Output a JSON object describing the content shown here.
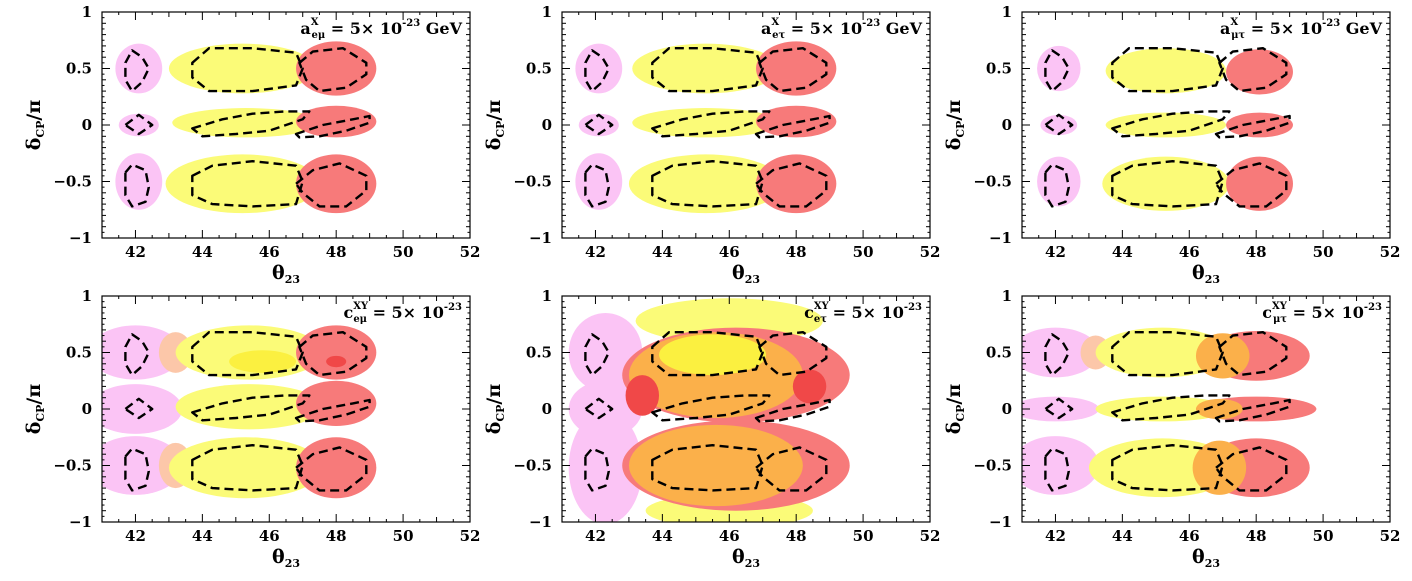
{
  "figure": {
    "panels": 6,
    "layout": "2 rows x 3 columns",
    "x_axis": {
      "symbol": "θ",
      "subscript": "23",
      "range": [
        41,
        52
      ],
      "major_ticks": [
        42,
        44,
        46,
        48,
        50,
        52
      ],
      "tick_labels": [
        "42",
        "44",
        "46",
        "48",
        "50",
        "52"
      ]
    },
    "y_axis": {
      "symbol": "δ",
      "subscript": "CP",
      "suffix": "/π",
      "range": [
        -1,
        1
      ],
      "major_ticks": [
        -1,
        -0.5,
        0,
        0.5,
        1
      ],
      "tick_labels": [
        "−1",
        "−0.5",
        "0",
        "0.5",
        "1"
      ]
    },
    "colors": {
      "pink": "#fbc4f5",
      "yellow": "#fbfb78",
      "red": "#f77a7a",
      "orange": "#fbb04a",
      "dark_red": "#f04848",
      "bright_yellow": "#fbf040",
      "peach": "#fcc7a9",
      "contour": "#000000"
    }
  },
  "chart_data": [
    {
      "type": "area",
      "annotation": {
        "base": "a",
        "sup": "X",
        "sub": "eμ",
        "rest": " = 5× 10",
        "exp": "-23",
        "unit": " GeV"
      },
      "xlim": [
        41,
        52
      ],
      "ylim": [
        -1,
        1
      ],
      "grid": false,
      "legend": "none",
      "regions": [
        {
          "color": "pink",
          "center": [
            42.1,
            0.5
          ],
          "rx": 0.7,
          "ry": 0.22
        },
        {
          "color": "pink",
          "center": [
            42.1,
            0.0
          ],
          "rx": 0.6,
          "ry": 0.1
        },
        {
          "color": "pink",
          "center": [
            42.1,
            -0.5
          ],
          "rx": 0.7,
          "ry": 0.25
        },
        {
          "color": "yellow",
          "center": [
            45.2,
            0.5
          ],
          "rx": 2.2,
          "ry": 0.22
        },
        {
          "color": "yellow",
          "center": [
            45.3,
            0.02
          ],
          "rx": 2.2,
          "ry": 0.13
        },
        {
          "color": "yellow",
          "center": [
            45.2,
            -0.52
          ],
          "rx": 2.3,
          "ry": 0.26
        },
        {
          "color": "red",
          "center": [
            48.0,
            0.5
          ],
          "rx": 1.2,
          "ry": 0.24
        },
        {
          "color": "red",
          "center": [
            48.0,
            0.03
          ],
          "rx": 1.2,
          "ry": 0.14
        },
        {
          "color": "red",
          "center": [
            48.0,
            -0.52
          ],
          "rx": 1.2,
          "ry": 0.26
        }
      ]
    },
    {
      "type": "area",
      "annotation": {
        "base": "a",
        "sup": "X",
        "sub": "eτ",
        "rest": " = 5× 10",
        "exp": "-23",
        "unit": " GeV"
      },
      "xlim": [
        41,
        52
      ],
      "ylim": [
        -1,
        1
      ],
      "grid": false,
      "legend": "none",
      "regions": [
        {
          "color": "pink",
          "center": [
            42.1,
            0.5
          ],
          "rx": 0.7,
          "ry": 0.22
        },
        {
          "color": "pink",
          "center": [
            42.1,
            0.0
          ],
          "rx": 0.6,
          "ry": 0.1
        },
        {
          "color": "pink",
          "center": [
            42.1,
            -0.5
          ],
          "rx": 0.7,
          "ry": 0.25
        },
        {
          "color": "yellow",
          "center": [
            45.3,
            0.5
          ],
          "rx": 2.2,
          "ry": 0.22
        },
        {
          "color": "yellow",
          "center": [
            45.3,
            0.02
          ],
          "rx": 2.2,
          "ry": 0.13
        },
        {
          "color": "yellow",
          "center": [
            45.3,
            -0.52
          ],
          "rx": 2.3,
          "ry": 0.26
        },
        {
          "color": "red",
          "center": [
            48.0,
            0.5
          ],
          "rx": 1.2,
          "ry": 0.24
        },
        {
          "color": "red",
          "center": [
            48.0,
            0.03
          ],
          "rx": 1.2,
          "ry": 0.14
        },
        {
          "color": "red",
          "center": [
            48.0,
            -0.52
          ],
          "rx": 1.2,
          "ry": 0.26
        }
      ]
    },
    {
      "type": "area",
      "annotation": {
        "base": "a",
        "sup": "X",
        "sub": "μτ",
        "rest": " = 5× 10",
        "exp": "-23",
        "unit": " GeV"
      },
      "xlim": [
        41,
        52
      ],
      "ylim": [
        -1,
        1
      ],
      "grid": false,
      "legend": "none",
      "regions": [
        {
          "color": "pink",
          "center": [
            42.1,
            0.5
          ],
          "rx": 0.65,
          "ry": 0.2
        },
        {
          "color": "pink",
          "center": [
            42.1,
            0.0
          ],
          "rx": 0.55,
          "ry": 0.09
        },
        {
          "color": "pink",
          "center": [
            42.1,
            -0.5
          ],
          "rx": 0.65,
          "ry": 0.22
        },
        {
          "color": "yellow",
          "center": [
            45.3,
            0.48
          ],
          "rx": 1.8,
          "ry": 0.2
        },
        {
          "color": "yellow",
          "center": [
            45.3,
            0.0
          ],
          "rx": 1.8,
          "ry": 0.11
        },
        {
          "color": "yellow",
          "center": [
            45.3,
            -0.52
          ],
          "rx": 1.9,
          "ry": 0.24
        },
        {
          "color": "red",
          "center": [
            48.1,
            0.47
          ],
          "rx": 1.0,
          "ry": 0.2
        },
        {
          "color": "red",
          "center": [
            48.1,
            0.0
          ],
          "rx": 1.0,
          "ry": 0.11
        },
        {
          "color": "red",
          "center": [
            48.1,
            -0.52
          ],
          "rx": 1.0,
          "ry": 0.24
        }
      ]
    },
    {
      "type": "area",
      "annotation": {
        "base": "c",
        "sup": "XY",
        "sub": "eμ",
        "rest": " = 5× 10",
        "exp": "-23",
        "unit": ""
      },
      "xlim": [
        41,
        52
      ],
      "ylim": [
        -1,
        1
      ],
      "grid": false,
      "legend": "none",
      "regions": [
        {
          "color": "pink",
          "center": [
            42.0,
            0.5
          ],
          "rx": 1.4,
          "ry": 0.24
        },
        {
          "color": "pink",
          "center": [
            42.0,
            0.0
          ],
          "rx": 1.4,
          "ry": 0.22
        },
        {
          "color": "pink",
          "center": [
            42.0,
            -0.5
          ],
          "rx": 1.4,
          "ry": 0.26
        },
        {
          "color": "peach",
          "center": [
            43.2,
            0.5
          ],
          "rx": 0.5,
          "ry": 0.18
        },
        {
          "color": "peach",
          "center": [
            43.2,
            -0.5
          ],
          "rx": 0.5,
          "ry": 0.2
        },
        {
          "color": "yellow",
          "center": [
            45.4,
            0.5
          ],
          "rx": 2.2,
          "ry": 0.24
        },
        {
          "color": "yellow",
          "center": [
            45.4,
            0.02
          ],
          "rx": 2.2,
          "ry": 0.2
        },
        {
          "color": "yellow",
          "center": [
            45.3,
            -0.52
          ],
          "rx": 2.3,
          "ry": 0.27
        },
        {
          "color": "bright_yellow",
          "center": [
            45.8,
            0.42
          ],
          "rx": 1.0,
          "ry": 0.1
        },
        {
          "color": "red",
          "center": [
            48.0,
            0.5
          ],
          "rx": 1.2,
          "ry": 0.24
        },
        {
          "color": "red",
          "center": [
            48.0,
            0.05
          ],
          "rx": 1.2,
          "ry": 0.2
        },
        {
          "color": "red",
          "center": [
            48.0,
            -0.52
          ],
          "rx": 1.2,
          "ry": 0.27
        },
        {
          "color": "dark_red",
          "center": [
            48.0,
            0.42
          ],
          "rx": 0.3,
          "ry": 0.05
        }
      ]
    },
    {
      "type": "area",
      "annotation": {
        "base": "c",
        "sup": "XY",
        "sub": "eτ",
        "rest": " = 5× 10",
        "exp": "-23",
        "unit": ""
      },
      "xlim": [
        41,
        52
      ],
      "ylim": [
        -1,
        1
      ],
      "grid": false,
      "legend": "none",
      "regions": [
        {
          "color": "pink",
          "center": [
            42.3,
            0.5
          ],
          "rx": 1.1,
          "ry": 0.35
        },
        {
          "color": "pink",
          "center": [
            42.3,
            0.0
          ],
          "rx": 1.1,
          "ry": 0.25
        },
        {
          "color": "pink",
          "center": [
            42.3,
            -0.52
          ],
          "rx": 1.1,
          "ry": 0.5
        },
        {
          "color": "yellow",
          "center": [
            46.0,
            0.78
          ],
          "rx": 2.8,
          "ry": 0.2
        },
        {
          "color": "yellow",
          "center": [
            46.0,
            -0.9
          ],
          "rx": 2.5,
          "ry": 0.15
        },
        {
          "color": "red",
          "center": [
            46.2,
            0.3
          ],
          "rx": 3.4,
          "ry": 0.42
        },
        {
          "color": "red",
          "center": [
            46.2,
            -0.5
          ],
          "rx": 3.4,
          "ry": 0.4
        },
        {
          "color": "orange",
          "center": [
            45.6,
            0.3
          ],
          "rx": 2.6,
          "ry": 0.38
        },
        {
          "color": "orange",
          "center": [
            45.6,
            -0.5
          ],
          "rx": 2.6,
          "ry": 0.36
        },
        {
          "color": "bright_yellow",
          "center": [
            45.5,
            0.48
          ],
          "rx": 1.6,
          "ry": 0.18
        },
        {
          "color": "dark_red",
          "center": [
            43.4,
            0.12
          ],
          "rx": 0.5,
          "ry": 0.18
        },
        {
          "color": "dark_red",
          "center": [
            48.4,
            0.2
          ],
          "rx": 0.5,
          "ry": 0.15
        }
      ]
    },
    {
      "type": "area",
      "annotation": {
        "base": "c",
        "sup": "XY",
        "sub": "μτ",
        "rest": " = 5× 10",
        "exp": "-23",
        "unit": ""
      },
      "xlim": [
        41,
        52
      ],
      "ylim": [
        -1,
        1
      ],
      "grid": false,
      "legend": "none",
      "regions": [
        {
          "color": "pink",
          "center": [
            42.0,
            0.5
          ],
          "rx": 1.3,
          "ry": 0.22
        },
        {
          "color": "pink",
          "center": [
            42.0,
            0.0
          ],
          "rx": 1.3,
          "ry": 0.11
        },
        {
          "color": "pink",
          "center": [
            42.0,
            -0.5
          ],
          "rx": 1.3,
          "ry": 0.26
        },
        {
          "color": "peach",
          "center": [
            43.2,
            0.5
          ],
          "rx": 0.45,
          "ry": 0.15
        },
        {
          "color": "yellow",
          "center": [
            45.2,
            0.5
          ],
          "rx": 2.0,
          "ry": 0.22
        },
        {
          "color": "yellow",
          "center": [
            45.2,
            0.0
          ],
          "rx": 2.0,
          "ry": 0.11
        },
        {
          "color": "yellow",
          "center": [
            45.2,
            -0.52
          ],
          "rx": 2.2,
          "ry": 0.26
        },
        {
          "color": "red",
          "center": [
            48.0,
            0.47
          ],
          "rx": 1.6,
          "ry": 0.22
        },
        {
          "color": "red",
          "center": [
            48.0,
            0.0
          ],
          "rx": 1.8,
          "ry": 0.11
        },
        {
          "color": "red",
          "center": [
            48.0,
            -0.52
          ],
          "rx": 1.6,
          "ry": 0.26
        },
        {
          "color": "orange",
          "center": [
            47.0,
            0.47
          ],
          "rx": 0.8,
          "ry": 0.2
        },
        {
          "color": "orange",
          "center": [
            46.9,
            0.0
          ],
          "rx": 0.7,
          "ry": 0.09
        },
        {
          "color": "orange",
          "center": [
            46.9,
            -0.52
          ],
          "rx": 0.8,
          "ry": 0.24
        }
      ]
    }
  ],
  "dashed_contours": [
    {
      "points": [
        [
          41.7,
          0.55
        ],
        [
          41.9,
          0.66
        ],
        [
          42.2,
          0.6
        ],
        [
          42.4,
          0.5
        ],
        [
          42.2,
          0.38
        ],
        [
          41.9,
          0.3
        ],
        [
          41.7,
          0.4
        ]
      ]
    },
    {
      "points": [
        [
          41.7,
          0.0
        ],
        [
          42.1,
          0.09
        ],
        [
          42.5,
          0.0
        ],
        [
          42.1,
          -0.08
        ]
      ]
    },
    {
      "points": [
        [
          41.7,
          -0.42
        ],
        [
          41.9,
          -0.35
        ],
        [
          42.3,
          -0.4
        ],
        [
          42.4,
          -0.55
        ],
        [
          42.3,
          -0.68
        ],
        [
          41.9,
          -0.72
        ],
        [
          41.7,
          -0.62
        ]
      ]
    },
    {
      "points": [
        [
          43.7,
          0.55
        ],
        [
          44.2,
          0.68
        ],
        [
          45.5,
          0.68
        ],
        [
          46.8,
          0.64
        ],
        [
          47.0,
          0.5
        ],
        [
          46.8,
          0.35
        ],
        [
          45.5,
          0.3
        ],
        [
          44.2,
          0.3
        ],
        [
          43.7,
          0.42
        ]
      ]
    },
    {
      "points": [
        [
          43.7,
          -0.03
        ],
        [
          44.6,
          0.05
        ],
        [
          45.5,
          0.1
        ],
        [
          46.5,
          0.12
        ],
        [
          47.2,
          0.12
        ],
        [
          47.0,
          0.05
        ],
        [
          46.0,
          -0.05
        ],
        [
          45.0,
          -0.08
        ],
        [
          44.0,
          -0.1
        ]
      ]
    },
    {
      "points": [
        [
          43.7,
          -0.45
        ],
        [
          44.3,
          -0.36
        ],
        [
          45.5,
          -0.32
        ],
        [
          46.8,
          -0.36
        ],
        [
          47.0,
          -0.5
        ],
        [
          46.8,
          -0.7
        ],
        [
          45.5,
          -0.72
        ],
        [
          44.3,
          -0.7
        ],
        [
          43.7,
          -0.62
        ]
      ]
    },
    {
      "points": [
        [
          46.9,
          0.55
        ],
        [
          47.3,
          0.65
        ],
        [
          48.2,
          0.68
        ],
        [
          48.9,
          0.55
        ],
        [
          48.9,
          0.45
        ],
        [
          48.3,
          0.33
        ],
        [
          47.5,
          0.3
        ],
        [
          47.1,
          0.4
        ]
      ]
    },
    {
      "points": [
        [
          46.8,
          -0.08
        ],
        [
          47.6,
          0.0
        ],
        [
          48.5,
          0.05
        ],
        [
          49.0,
          0.08
        ],
        [
          49.0,
          0.02
        ],
        [
          48.3,
          -0.05
        ],
        [
          47.5,
          -0.1
        ],
        [
          46.9,
          -0.11
        ]
      ]
    },
    {
      "points": [
        [
          46.8,
          -0.52
        ],
        [
          47.3,
          -0.4
        ],
        [
          48.1,
          -0.34
        ],
        [
          48.9,
          -0.45
        ],
        [
          48.9,
          -0.58
        ],
        [
          48.3,
          -0.72
        ],
        [
          47.5,
          -0.72
        ],
        [
          47.0,
          -0.6
        ]
      ]
    }
  ]
}
